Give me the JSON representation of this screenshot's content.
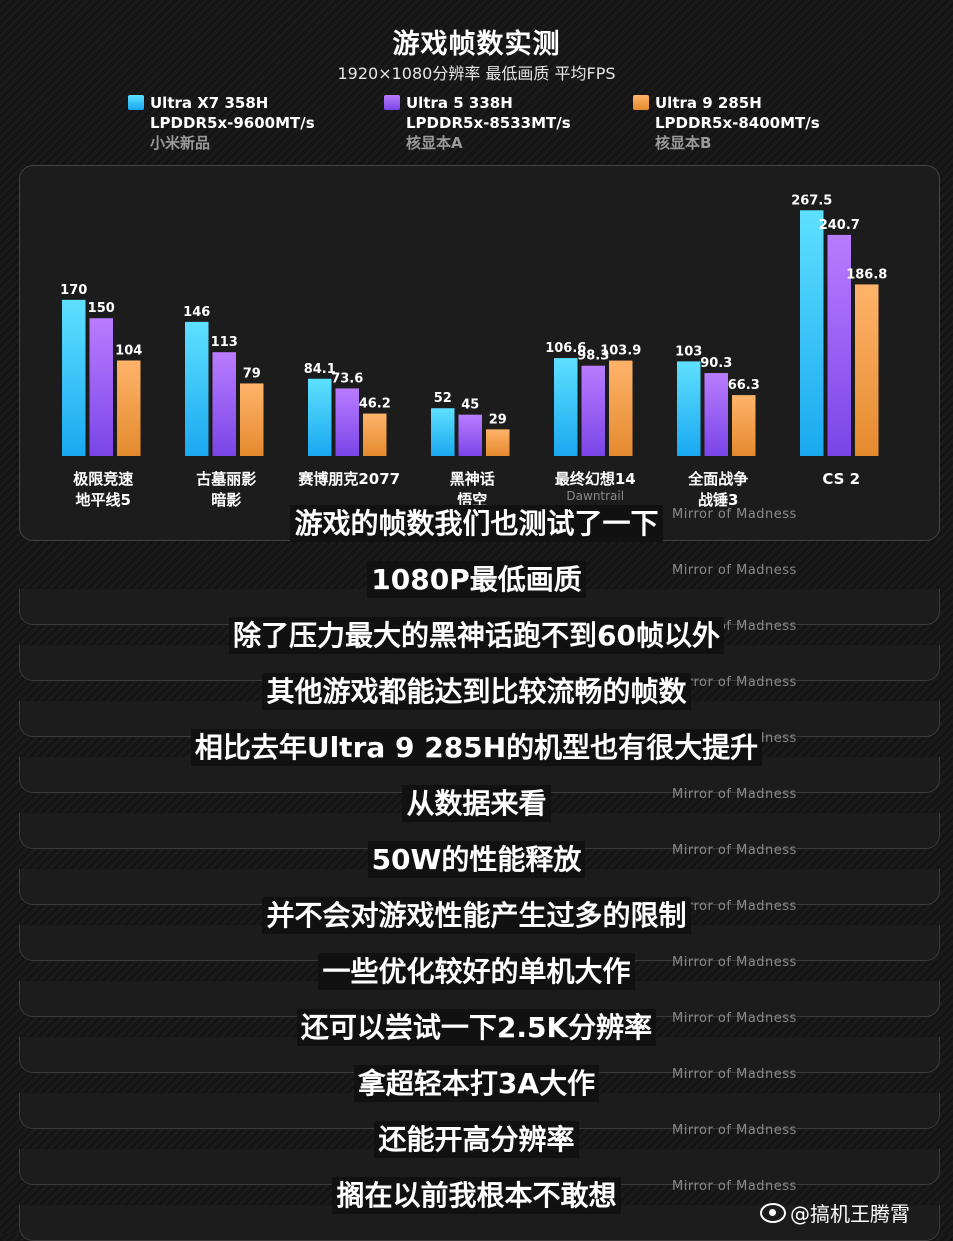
{
  "chart_data": {
    "type": "bar",
    "title": "游戏帧数实测",
    "subtitle": "1920×1080分辨率  最低画质  平均FPS",
    "categories": [
      {
        "line1": "极限竞速",
        "line2": "地平线5",
        "sub": ""
      },
      {
        "line1": "古墓丽影",
        "line2": "暗影",
        "sub": ""
      },
      {
        "line1": "赛博朋克2077",
        "line2": "",
        "sub": ""
      },
      {
        "line1": "黑神话",
        "line2": "悟空",
        "sub": ""
      },
      {
        "line1": "最终幻想14",
        "line2": "",
        "sub": "Dawntrail"
      },
      {
        "line1": "全面战争",
        "line2": "战锤3",
        "sub": ""
      },
      {
        "line1": "CS 2",
        "line2": "",
        "sub": ""
      }
    ],
    "series": [
      {
        "name": "Ultra X7 358H",
        "memory": "LPDDR5x-9600MT/s",
        "note": "小米新品",
        "colors": [
          "#5ee0ff",
          "#1aa8f0"
        ],
        "values": [
          170,
          146,
          84.1,
          52,
          106.6,
          103,
          267.5
        ]
      },
      {
        "name": "Ultra 5 338H",
        "memory": "LPDDR5x-8533MT/s",
        "note": "核显本A",
        "colors": [
          "#b97cff",
          "#7a45e8"
        ],
        "values": [
          150,
          113,
          73.6,
          45,
          98.3,
          90.3,
          240.7
        ]
      },
      {
        "name": "Ultra 9 285H",
        "memory": "LPDDR5x-8400MT/s",
        "note": "核显本B",
        "colors": [
          "#ffb36a",
          "#e48a2e"
        ],
        "values": [
          104,
          79,
          46.2,
          29,
          103.9,
          66.3,
          186.8
        ]
      }
    ],
    "ylim": [
      0,
      270
    ],
    "legend": "top"
  },
  "watermark": "Mirror of Madness",
  "subtitles": [
    "游戏的帧数我们也测试了一下",
    "1080P最低画质",
    "除了压力最大的黑神话跑不到60帧以外",
    "其他游戏都能达到比较流畅的帧数",
    "相比去年Ultra 9 285H的机型也有很大提升",
    "从数据来看",
    "50W的性能释放",
    "并不会对游戏性能产生过多的限制",
    "一些优化较好的单机大作",
    "还可以尝试一下2.5K分辨率",
    "拿超轻本打3A大作",
    "还能开高分辨率",
    "搁在以前我根本不敢想"
  ],
  "credit": "@搞机王腾霄"
}
